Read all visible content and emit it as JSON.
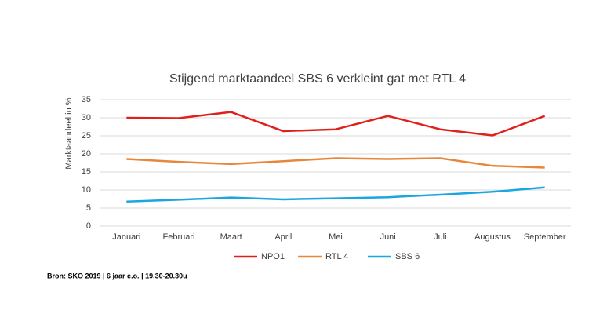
{
  "chart_data": {
    "type": "line",
    "title": "Stijgend marktaandeel SBS 6 verkleint gat met RTL 4",
    "y_label": "Marktaandeel in %",
    "categories": [
      "Januari",
      "Februari",
      "Maart",
      "April",
      "Mei",
      "Juni",
      "Juli",
      "Augustus",
      "September"
    ],
    "series": [
      {
        "name": "NPO1",
        "color": "#e0201b",
        "values": [
          30,
          29.9,
          31.6,
          26.3,
          26.8,
          30.5,
          26.8,
          25.1,
          30.5
        ]
      },
      {
        "name": "RTL 4",
        "color": "#e8873a",
        "values": [
          18.6,
          17.8,
          17.2,
          18.0,
          18.8,
          18.6,
          18.8,
          16.7,
          16.2
        ]
      },
      {
        "name": "SBS 6",
        "color": "#1aa7e0",
        "values": [
          6.8,
          7.3,
          7.9,
          7.4,
          7.7,
          8.0,
          8.7,
          9.5,
          10.7
        ]
      }
    ],
    "ylim": [
      0,
      35
    ],
    "yticks": [
      0,
      5,
      10,
      15,
      20,
      25,
      30,
      35
    ],
    "grid": true,
    "legend": "bottom",
    "source": "Bron: SKO 2019 | 6 jaar e.o. | 19.30-20.30u"
  }
}
